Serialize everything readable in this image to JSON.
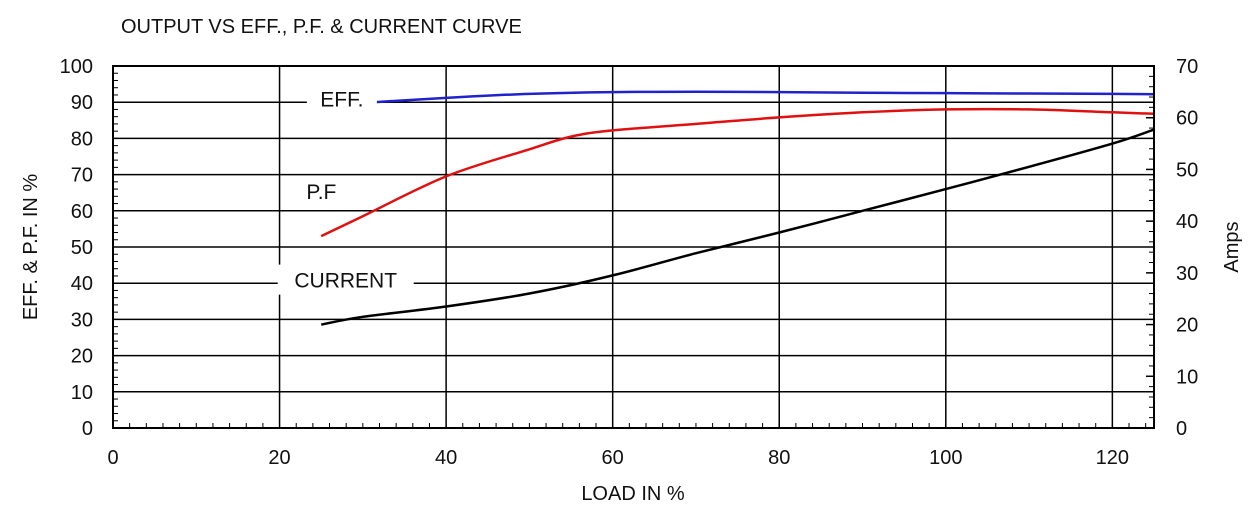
{
  "chart_data": {
    "type": "line",
    "title": "OUTPUT VS EFF., P.F. & CURRENT CURVE",
    "xlabel": "LOAD IN %",
    "ylabel": "EFF. & P.F. IN %",
    "y2label": "Amps",
    "xlim": [
      0,
      125
    ],
    "ylim": [
      0,
      100
    ],
    "y2lim": [
      0,
      70
    ],
    "x_ticks": [
      0,
      20,
      40,
      60,
      80,
      100,
      120
    ],
    "y_ticks": [
      0,
      10,
      20,
      30,
      40,
      50,
      60,
      70,
      80,
      90,
      100
    ],
    "y2_ticks": [
      0,
      10,
      20,
      30,
      40,
      50,
      60,
      70
    ],
    "grid": true,
    "colors": {
      "eff": "#2222cc",
      "pf": "#e01010",
      "current": "#000000"
    },
    "series": [
      {
        "name": "EFF.",
        "axis": "left",
        "x": [
          25,
          30,
          40,
          50,
          60,
          70,
          80,
          90,
          100,
          110,
          120,
          125
        ],
        "y": [
          88.8,
          89.8,
          91.2,
          92.3,
          92.8,
          92.9,
          92.8,
          92.6,
          92.5,
          92.4,
          92.3,
          92.2
        ]
      },
      {
        "name": "P.F",
        "axis": "left",
        "x": [
          25,
          30,
          40,
          50,
          55,
          60,
          70,
          80,
          90,
          100,
          110,
          120,
          125
        ],
        "y": [
          53,
          58.5,
          69.5,
          77,
          80.5,
          82.2,
          84,
          85.8,
          87.2,
          88,
          88,
          87.2,
          86.8
        ]
      },
      {
        "name": "CURRENT",
        "axis": "right",
        "x": [
          25,
          30,
          40,
          50,
          60,
          70,
          80,
          90,
          100,
          110,
          120,
          125
        ],
        "y": [
          20,
          21.5,
          23.5,
          26,
          29.5,
          33.8,
          37.8,
          42,
          46.2,
          50.5,
          55,
          57.7
        ]
      }
    ]
  }
}
